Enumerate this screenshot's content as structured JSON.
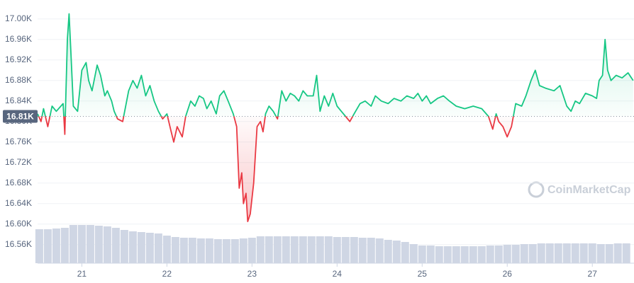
{
  "chart_data": {
    "type": "line",
    "x": [
      20.48,
      20.52,
      20.55,
      20.6,
      20.65,
      20.7,
      20.78,
      20.8,
      20.83,
      20.85,
      20.87,
      20.9,
      20.95,
      21.0,
      21.05,
      21.08,
      21.12,
      21.18,
      21.22,
      21.27,
      21.3,
      21.35,
      21.38,
      21.42,
      21.48,
      21.55,
      21.6,
      21.65,
      21.7,
      21.75,
      21.8,
      21.85,
      21.9,
      21.95,
      22.0,
      22.05,
      22.08,
      22.12,
      22.18,
      22.22,
      22.28,
      22.33,
      22.38,
      22.43,
      22.47,
      22.52,
      22.58,
      22.62,
      22.67,
      22.72,
      22.78,
      22.82,
      22.85,
      22.88,
      22.9,
      22.93,
      22.95,
      22.98,
      23.02,
      23.06,
      23.1,
      23.13,
      23.16,
      23.2,
      23.25,
      23.3,
      23.35,
      23.4,
      23.45,
      23.5,
      23.55,
      23.6,
      23.65,
      23.72,
      23.76,
      23.8,
      23.85,
      23.9,
      23.95,
      24.0,
      24.05,
      24.1,
      24.15,
      24.2,
      24.27,
      24.33,
      24.4,
      24.45,
      24.52,
      24.6,
      24.67,
      24.75,
      24.82,
      24.9,
      24.95,
      25.0,
      25.05,
      25.1,
      25.18,
      25.25,
      25.32,
      25.4,
      25.5,
      25.6,
      25.7,
      25.78,
      25.83,
      25.87,
      25.9,
      25.95,
      26.0,
      26.05,
      26.1,
      26.17,
      26.22,
      26.28,
      26.33,
      26.38,
      26.45,
      26.55,
      26.62,
      26.7,
      26.75,
      26.8,
      26.85,
      26.92,
      27.0,
      27.05,
      27.08,
      27.12,
      27.15,
      27.18,
      27.22,
      27.28,
      27.35,
      27.42,
      27.48
    ],
    "values": [
      16815,
      16800,
      16825,
      16790,
      16830,
      16820,
      16835,
      16775,
      16960,
      17010,
      16940,
      16830,
      16820,
      16900,
      16915,
      16880,
      16860,
      16910,
      16890,
      16850,
      16860,
      16840,
      16820,
      16805,
      16800,
      16860,
      16880,
      16865,
      16890,
      16850,
      16870,
      16840,
      16820,
      16805,
      16815,
      16780,
      16760,
      16790,
      16770,
      16810,
      16840,
      16830,
      16850,
      16845,
      16825,
      16840,
      16815,
      16850,
      16860,
      16840,
      16815,
      16790,
      16670,
      16700,
      16640,
      16660,
      16605,
      16620,
      16680,
      16790,
      16800,
      16780,
      16815,
      16830,
      16820,
      16805,
      16860,
      16840,
      16855,
      16850,
      16840,
      16860,
      16850,
      16850,
      16890,
      16820,
      16850,
      16830,
      16855,
      16830,
      16820,
      16810,
      16800,
      16815,
      16835,
      16840,
      16830,
      16850,
      16840,
      16835,
      16845,
      16840,
      16850,
      16845,
      16855,
      16840,
      16850,
      16835,
      16845,
      16850,
      16840,
      16830,
      16825,
      16830,
      16825,
      16810,
      16785,
      16815,
      16800,
      16790,
      16770,
      16790,
      16835,
      16830,
      16850,
      16880,
      16900,
      16870,
      16865,
      16860,
      16870,
      16830,
      16820,
      16840,
      16835,
      16855,
      16850,
      16845,
      16880,
      16890,
      16960,
      16900,
      16880,
      16890,
      16885,
      16895,
      16880
    ],
    "color_up": "#16c784",
    "color_down": "#ea3943",
    "baseline": {
      "value": 16810,
      "label": "16.81K"
    },
    "ylim": [
      16530,
      17030
    ],
    "yticks": [
      {
        "value": 17000,
        "label": "17.00K"
      },
      {
        "value": 16960,
        "label": "16.96K"
      },
      {
        "value": 16920,
        "label": "16.92K"
      },
      {
        "value": 16880,
        "label": "16.88K"
      },
      {
        "value": 16840,
        "label": "16.84K"
      },
      {
        "value": 16800,
        "label": "16.80K"
      },
      {
        "value": 16760,
        "label": "16.76K"
      },
      {
        "value": 16720,
        "label": "16.72K"
      },
      {
        "value": 16680,
        "label": "16.68K"
      },
      {
        "value": 16640,
        "label": "16.64K"
      },
      {
        "value": 16600,
        "label": "16.60K"
      },
      {
        "value": 16560,
        "label": "16.56K"
      }
    ],
    "xlim": [
      20.48,
      27.49
    ],
    "xticks": [
      21,
      22,
      23,
      24,
      25,
      26,
      27
    ],
    "grid": true,
    "volume": {
      "axis": "y2",
      "color": "#cfd6e4",
      "x": [
        20.5,
        20.6,
        20.7,
        20.8,
        20.9,
        21.0,
        21.1,
        21.2,
        21.3,
        21.4,
        21.5,
        21.6,
        21.7,
        21.8,
        21.9,
        22.0,
        22.1,
        22.2,
        22.3,
        22.4,
        22.5,
        22.6,
        22.7,
        22.8,
        22.9,
        23.0,
        23.1,
        23.2,
        23.3,
        23.4,
        23.5,
        23.6,
        23.7,
        23.8,
        23.9,
        24.0,
        24.1,
        24.2,
        24.3,
        24.4,
        24.5,
        24.6,
        24.7,
        24.8,
        24.9,
        25.0,
        25.1,
        25.2,
        25.3,
        25.4,
        25.5,
        25.6,
        25.7,
        25.8,
        25.9,
        26.0,
        26.1,
        26.2,
        26.3,
        26.4,
        26.5,
        26.6,
        26.7,
        26.8,
        26.9,
        27.0,
        27.1,
        27.2,
        27.3,
        27.4
      ],
      "values": [
        48,
        48,
        49,
        50,
        54,
        54,
        54,
        53,
        52,
        50,
        47,
        45,
        44,
        43,
        42,
        39,
        37,
        36,
        36,
        35,
        35,
        34,
        34,
        34,
        35,
        36,
        38,
        38,
        38,
        38,
        38,
        38,
        38,
        38,
        38,
        37,
        37,
        37,
        36,
        36,
        35,
        33,
        32,
        30,
        27,
        25,
        25,
        24,
        24,
        24,
        24,
        24,
        24,
        25,
        25,
        26,
        26,
        27,
        27,
        28,
        28,
        28,
        28,
        28,
        28,
        28,
        27,
        27,
        28,
        28
      ]
    },
    "y2lim": [
      0,
      100
    ],
    "watermark": "CoinMarketCap"
  }
}
